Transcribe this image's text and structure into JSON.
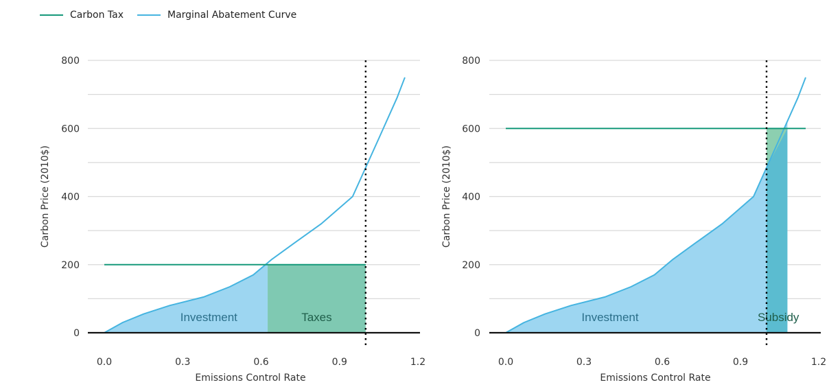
{
  "legend": {
    "items": [
      {
        "label": "Carbon Tax",
        "color": "#16997a"
      },
      {
        "label": "Marginal Abatement Curve",
        "color": "#45b4e0"
      }
    ]
  },
  "chart_data": [
    {
      "type": "area",
      "xlabel": "Emissions Control Rate",
      "ylabel": "Carbon Price (2010$)",
      "xlim": [
        -0.1,
        1.2
      ],
      "ylim": [
        0,
        800
      ],
      "xticks": [
        0.0,
        0.3,
        0.6,
        0.9,
        1.2
      ],
      "yticks": [
        0,
        200,
        400,
        600,
        800
      ],
      "grid": true,
      "series": [
        {
          "name": "Marginal Abatement Curve",
          "x": [
            0.0,
            0.07,
            0.15,
            0.25,
            0.38,
            0.48,
            0.57,
            0.64,
            0.73,
            0.83,
            0.95,
            1.05,
            1.12,
            1.15
          ],
          "y": [
            0,
            30,
            55,
            80,
            105,
            135,
            170,
            215,
            265,
            320,
            400,
            570,
            690,
            750
          ]
        },
        {
          "name": "Carbon Tax",
          "x": [
            0.0,
            1.0
          ],
          "y": [
            200,
            200
          ]
        }
      ],
      "regions": [
        {
          "label": "Investment",
          "kind": "under-curve",
          "x_end": 0.625
        },
        {
          "label": "Taxes",
          "kind": "tax-rectangle",
          "x_start": 0.625,
          "x_end": 1.0
        }
      ],
      "reference_x": 1.0
    },
    {
      "type": "area",
      "xlabel": "Emissions Control Rate",
      "ylabel": "Carbon Price (2010$)",
      "xlim": [
        -0.1,
        1.2
      ],
      "ylim": [
        0,
        800
      ],
      "xticks": [
        0.0,
        0.3,
        0.6,
        0.9,
        1.2
      ],
      "yticks": [
        0,
        200,
        400,
        600,
        800
      ],
      "grid": true,
      "series": [
        {
          "name": "Marginal Abatement Curve",
          "x": [
            0.0,
            0.07,
            0.15,
            0.25,
            0.38,
            0.48,
            0.57,
            0.64,
            0.73,
            0.83,
            0.95,
            1.05,
            1.12,
            1.15
          ],
          "y": [
            0,
            30,
            55,
            80,
            105,
            135,
            170,
            215,
            265,
            320,
            400,
            570,
            690,
            750
          ]
        },
        {
          "name": "Carbon Tax",
          "x": [
            0.0,
            1.15
          ],
          "y": [
            600,
            600
          ]
        }
      ],
      "regions": [
        {
          "label": "Investment",
          "kind": "under-curve",
          "x_end": 1.08
        },
        {
          "label": "Subsidy",
          "kind": "subsidy",
          "x_start": 1.0,
          "x_end": 1.08
        }
      ],
      "reference_x": 1.0
    }
  ]
}
